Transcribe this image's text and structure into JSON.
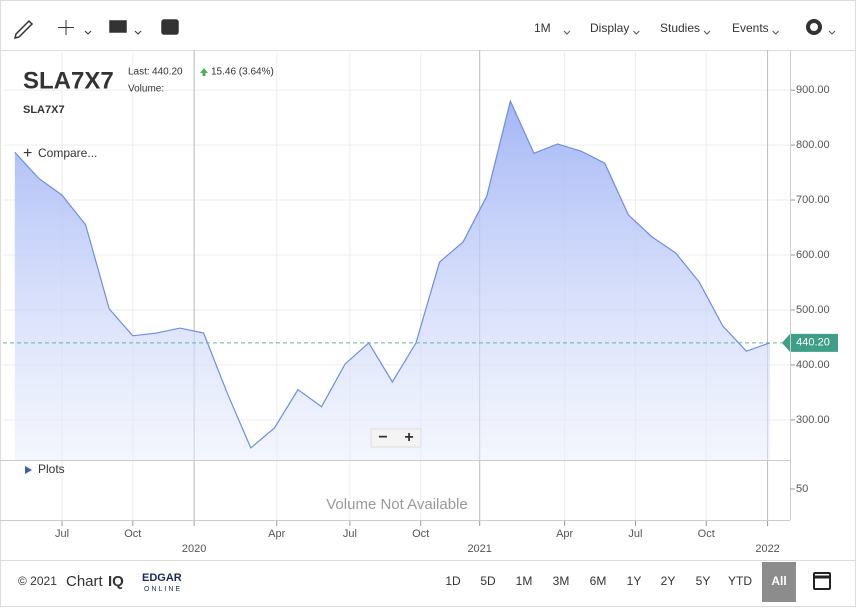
{
  "toolbar": {
    "period": "1M",
    "menus": [
      "Display",
      "Studies",
      "Events"
    ]
  },
  "header": {
    "symbol": "SLA7X7",
    "last_label": "Last:",
    "last": "440.20",
    "change": "15.46 (3.64%)",
    "volume_label": "Volume:",
    "subtitle": "SLA7X7"
  },
  "compare": "Compare...",
  "plots": "Plots",
  "chart_data": {
    "type": "area",
    "series": [
      {
        "name": "SLA7X7",
        "color": "#6d8de6",
        "values": [
          787,
          740,
          709,
          655,
          502,
          453,
          458,
          467,
          458,
          349,
          249,
          285,
          355,
          324,
          402,
          440,
          369,
          440,
          587,
          624,
          707,
          880,
          785,
          802,
          789,
          767,
          673,
          633,
          604,
          551,
          471,
          425,
          440.2
        ]
      }
    ],
    "xlim": [
      -0.5,
      32.85
    ],
    "xticks": [
      {
        "value": 2,
        "label": "Jul"
      },
      {
        "value": 5,
        "label": "Oct"
      },
      {
        "value": 7.6,
        "label": "2020"
      },
      {
        "value": 11.1,
        "label": "Apr"
      },
      {
        "value": 14.2,
        "label": "Jul"
      },
      {
        "value": 17.2,
        "label": "Oct"
      },
      {
        "value": 19.7,
        "label": "2021"
      },
      {
        "value": 23.3,
        "label": "Apr"
      },
      {
        "value": 26.3,
        "label": "Jul"
      },
      {
        "value": 29.3,
        "label": "Oct"
      },
      {
        "value": 31.9,
        "label": "2022"
      }
    ],
    "ylim": [
      227,
      973
    ],
    "yticks": [
      {
        "value": 300,
        "label": "300.00"
      },
      {
        "value": 400,
        "label": "400.00"
      },
      {
        "value": 500,
        "label": "500.00"
      },
      {
        "value": 600,
        "label": "600.00"
      },
      {
        "value": 700,
        "label": "700.00"
      },
      {
        "value": 800,
        "label": "800.00"
      },
      {
        "value": 900,
        "label": "900.00"
      }
    ],
    "grid": true
  },
  "volume": {
    "message": "Volume Not Available",
    "yticks": [
      50
    ]
  },
  "footer": {
    "copyright": "© 2021",
    "brand": "Chart",
    "brand2": "IQ",
    "edgar": "EDGAR",
    "online": "ONLINE",
    "ranges": [
      "1D",
      "5D",
      "1M",
      "3M",
      "6M",
      "1Y",
      "2Y",
      "5Y",
      "YTD",
      "All"
    ],
    "active": "All"
  }
}
